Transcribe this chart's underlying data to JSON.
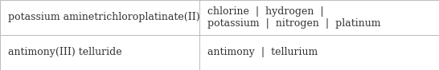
{
  "rows": [
    {
      "compound": "potassium aminetrichloroplatinate(II)",
      "elements": "chlorine  |  hydrogen  |\npotassium  |  nitrogen  |  platinum"
    },
    {
      "compound": "antimony(III) telluride",
      "elements": "antimony  |  tellurium"
    }
  ],
  "col_split": 0.455,
  "background_color": "#ffffff",
  "border_color": "#bbbbbb",
  "font_size": 9.0,
  "text_color": "#333333",
  "fig_width": 5.46,
  "fig_height": 0.88,
  "dpi": 100
}
